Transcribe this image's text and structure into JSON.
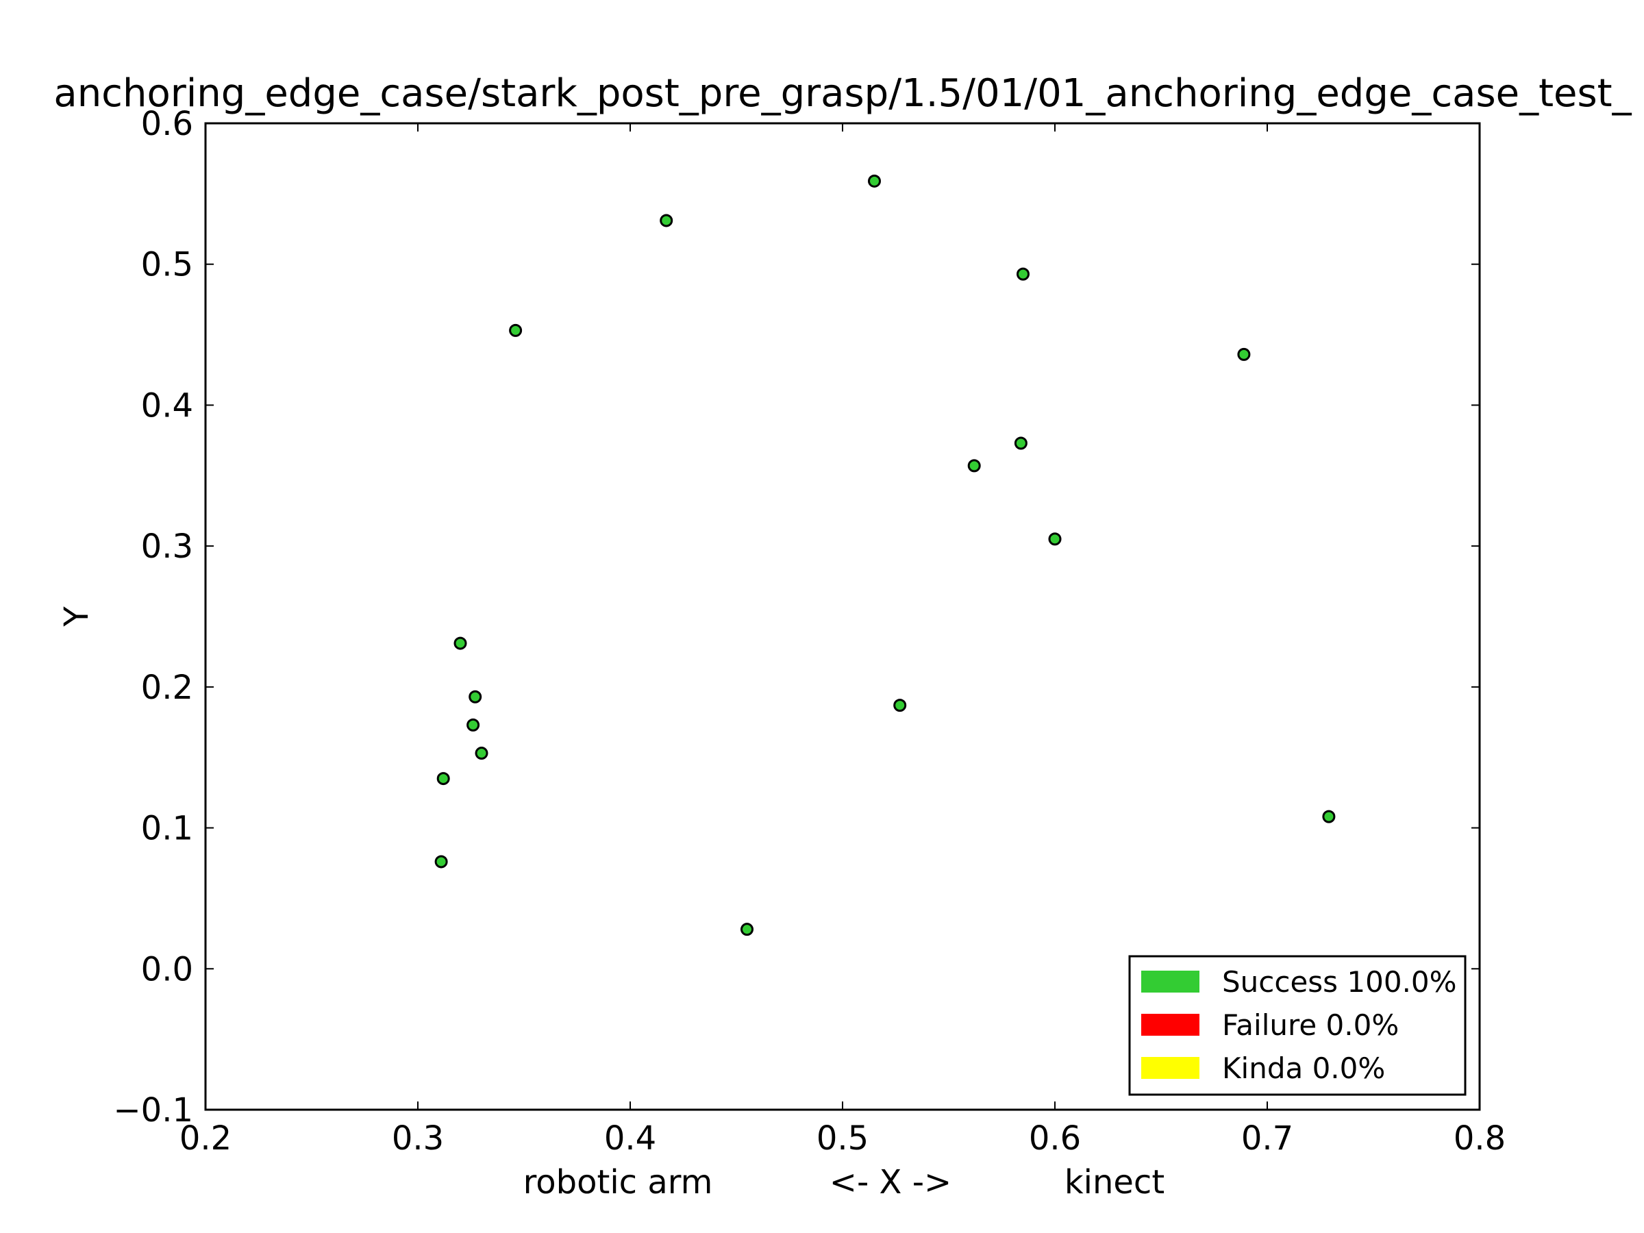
{
  "chart_data": {
    "type": "scatter",
    "title": "anchoring_edge_case/stark_post_pre_grasp/1.5/01/01_anchoring_edge_case_test_",
    "xlabel": "robotic arm          <- X ->          kinect",
    "xlabel_parts": [
      "robotic arm",
      "<- X ->",
      "kinect"
    ],
    "ylabel": "Y",
    "xlim": [
      0.2,
      0.8
    ],
    "ylim": [
      -0.1,
      0.6
    ],
    "xticks": [
      "0.2",
      "0.3",
      "0.4",
      "0.5",
      "0.6",
      "0.7",
      "0.8"
    ],
    "yticks": [
      "−0.1",
      "0.0",
      "0.1",
      "0.2",
      "0.3",
      "0.4",
      "0.5",
      "0.6"
    ],
    "grid": false,
    "legend_position": "lower-right",
    "point_color": "#33cc33",
    "series": [
      {
        "name": "Success",
        "color": "#33cc33",
        "points": [
          {
            "x": 0.515,
            "y": 0.559
          },
          {
            "x": 0.417,
            "y": 0.531
          },
          {
            "x": 0.585,
            "y": 0.493
          },
          {
            "x": 0.346,
            "y": 0.453
          },
          {
            "x": 0.689,
            "y": 0.436
          },
          {
            "x": 0.584,
            "y": 0.373
          },
          {
            "x": 0.562,
            "y": 0.357
          },
          {
            "x": 0.6,
            "y": 0.305
          },
          {
            "x": 0.32,
            "y": 0.231
          },
          {
            "x": 0.327,
            "y": 0.193
          },
          {
            "x": 0.527,
            "y": 0.187
          },
          {
            "x": 0.326,
            "y": 0.173
          },
          {
            "x": 0.33,
            "y": 0.153
          },
          {
            "x": 0.312,
            "y": 0.135
          },
          {
            "x": 0.729,
            "y": 0.108
          },
          {
            "x": 0.311,
            "y": 0.076
          },
          {
            "x": 0.455,
            "y": 0.028
          }
        ]
      }
    ],
    "legend": [
      {
        "label": "Success 100.0%",
        "color": "#33cc33"
      },
      {
        "label": "Failure 0.0%",
        "color": "#ff0000"
      },
      {
        "label": "Kinda 0.0%",
        "color": "#ffff00"
      }
    ]
  }
}
